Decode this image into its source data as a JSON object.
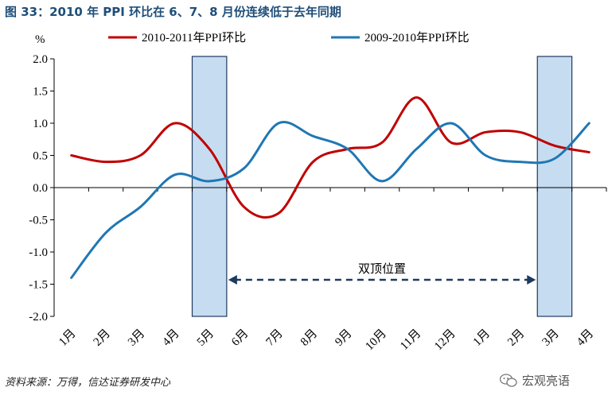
{
  "figure_title": "图 33：2010 年 PPI 环比在 6、7、8 月份连续低于去年同期",
  "source_note": "资料来源：万得，信达证券研发中心",
  "watermark_text": "宏观亮语",
  "annotation": "双顶位置",
  "colors": {
    "title": "#1f4e79",
    "red": "#c00000",
    "blue": "#1f77b4",
    "shade_fill": "#c6dcf0",
    "shade_stroke": "#1f3a5f",
    "arrow": "#1f3a5f"
  },
  "chart_data": {
    "type": "line",
    "ylabel": "%",
    "ylim": [
      -2.0,
      2.0
    ],
    "y_ticks": [
      "2.0",
      "1.5",
      "1.0",
      "0.5",
      "0.0",
      "-0.5",
      "-1.0",
      "-1.5",
      "-2.0"
    ],
    "categories": [
      "1月",
      "2月",
      "3月",
      "4月",
      "5月",
      "6月",
      "7月",
      "8月",
      "9月",
      "10月",
      "11月",
      "12月",
      "1月",
      "2月",
      "3月",
      "4月"
    ],
    "series": [
      {
        "name": "2010-2011年PPI环比",
        "color": "#c00000",
        "values": [
          0.5,
          0.4,
          0.5,
          1.0,
          0.6,
          -0.3,
          -0.4,
          0.4,
          0.6,
          0.7,
          1.4,
          0.7,
          0.86,
          0.86,
          0.65,
          0.55
        ]
      },
      {
        "name": "2009-2010年PPI环比",
        "color": "#1f77b4",
        "values": [
          -1.4,
          -0.7,
          -0.3,
          0.2,
          0.1,
          0.3,
          1.0,
          0.8,
          0.6,
          0.1,
          0.6,
          1.0,
          0.5,
          0.4,
          0.45,
          1.0
        ]
      }
    ],
    "highlight_regions": [
      {
        "category_index": 4
      },
      {
        "category_index": 14
      }
    ],
    "annotation_span": [
      5,
      14
    ],
    "grid": false,
    "legend_position": "top"
  }
}
